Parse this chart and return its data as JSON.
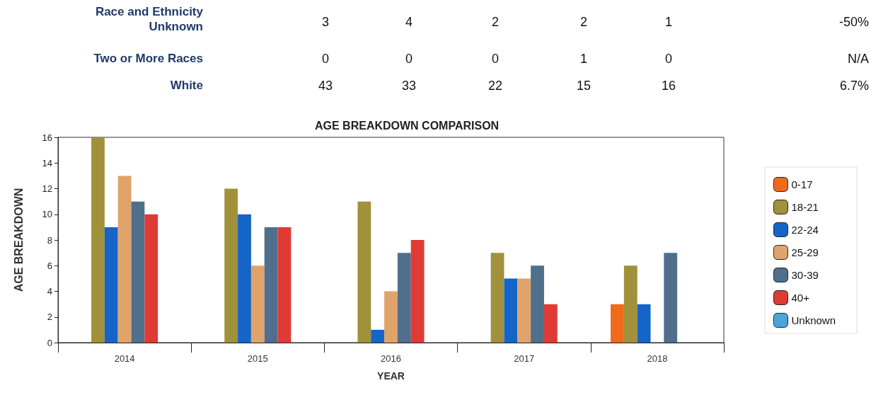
{
  "chart_data": [
    {
      "type": "other",
      "annotations": [
        "Race and Ethnicity Unknown",
        "3",
        "4",
        "2",
        "2",
        "1",
        "-50%",
        "Two or More Races",
        "0",
        "0",
        "0",
        "1",
        "0",
        "N/A",
        "White",
        "43",
        "33",
        "22",
        "15",
        "16",
        "6.7%"
      ]
    },
    {
      "type": "bar",
      "title": "AGE BREAKDOWN COMPARISON",
      "xlabel": "YEAR",
      "ylabel": "AGE BREAKDOWN",
      "categories": [
        "2014",
        "2015",
        "2016",
        "2017",
        "2018"
      ],
      "ylim": [
        0,
        16
      ],
      "yticks": [
        0,
        2,
        4,
        6,
        8,
        10,
        12,
        14,
        16
      ],
      "grid": false,
      "legend": "right",
      "series": [
        {
          "name": "0-17",
          "color": "#f06a1c",
          "values": [
            0,
            0,
            0,
            0,
            3
          ]
        },
        {
          "name": "18-21",
          "color": "#a0913a",
          "values": [
            16,
            12,
            11,
            7,
            6
          ]
        },
        {
          "name": "22-24",
          "color": "#1565c8",
          "values": [
            9,
            10,
            1,
            5,
            3
          ]
        },
        {
          "name": "25-29",
          "color": "#e0a36a",
          "values": [
            13,
            6,
            4,
            5,
            0
          ]
        },
        {
          "name": "30-39",
          "color": "#4f6f8c",
          "values": [
            11,
            9,
            7,
            6,
            7
          ]
        },
        {
          "name": "40+",
          "color": "#e03a35",
          "values": [
            10,
            9,
            8,
            3,
            0
          ]
        },
        {
          "name": "Unknown",
          "color": "#4aa6d8",
          "values": [
            0,
            0,
            0,
            0,
            0
          ]
        }
      ]
    }
  ]
}
